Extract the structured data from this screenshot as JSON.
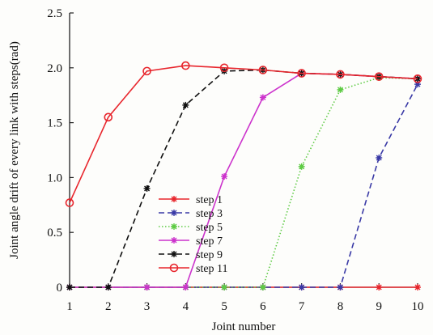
{
  "chart_data": {
    "type": "line",
    "xlabel": "Joint number",
    "ylabel": "Joint angle drift of every link with steps(rad)",
    "x": [
      1,
      2,
      3,
      4,
      5,
      6,
      7,
      8,
      9,
      10
    ],
    "xlim": [
      1,
      10
    ],
    "ylim": [
      0,
      2.5
    ],
    "xticks": [
      "1",
      "2",
      "3",
      "4",
      "5",
      "6",
      "7",
      "8",
      "9",
      "10"
    ],
    "yticks": [
      "0",
      "0.5",
      "1.0",
      "1.5",
      "2.0",
      "2.5"
    ],
    "grid": false,
    "legend_position": "lower-left",
    "series": [
      {
        "name": "step 1",
        "color": "#e8262d",
        "dash": "solid",
        "marker": "star",
        "values": [
          0,
          0,
          0,
          0,
          0,
          0,
          0,
          0,
          0,
          0
        ]
      },
      {
        "name": "step 3",
        "color": "#3a3aa6",
        "dash": "dashed",
        "marker": "star",
        "values": [
          0,
          0,
          0,
          0,
          0,
          0,
          0,
          0,
          1.18,
          1.85
        ]
      },
      {
        "name": "step 5",
        "color": "#5ecb44",
        "dash": "dotted",
        "marker": "star",
        "values": [
          0,
          0,
          0,
          0,
          0,
          0,
          1.1,
          1.8,
          1.91,
          1.9
        ]
      },
      {
        "name": "step 7",
        "color": "#cc33cc",
        "dash": "solid",
        "marker": "star",
        "values": [
          0,
          0,
          0,
          0,
          1.01,
          1.73,
          1.95,
          1.94,
          1.92,
          1.9
        ]
      },
      {
        "name": "step 9",
        "color": "#111111",
        "dash": "dashed",
        "marker": "star",
        "values": [
          0,
          0,
          0.9,
          1.66,
          1.97,
          1.98,
          1.95,
          1.94,
          1.92,
          1.9
        ]
      },
      {
        "name": "step 11",
        "color": "#e8262d",
        "dash": "solid",
        "marker": "circle",
        "values": [
          0.77,
          1.55,
          1.97,
          2.02,
          2.0,
          1.98,
          1.95,
          1.94,
          1.92,
          1.9
        ]
      }
    ]
  }
}
